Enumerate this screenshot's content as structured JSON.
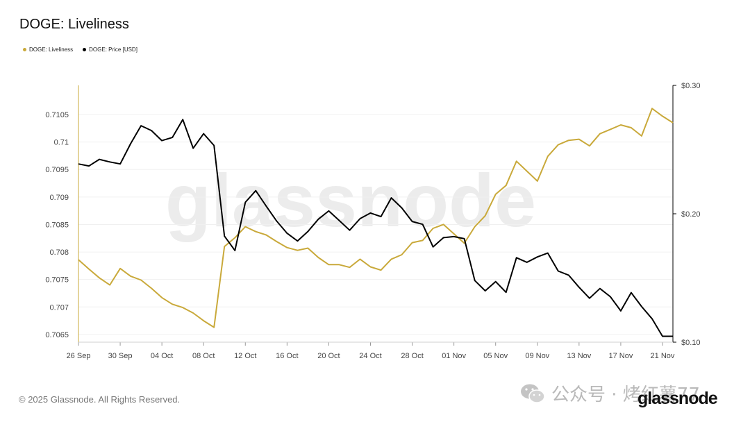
{
  "title": "DOGE: Liveliness",
  "legend": [
    {
      "label": "DOGE: Liveliness",
      "color": "#c9a93a"
    },
    {
      "label": "DOGE: Price [USD]",
      "color": "#000000"
    }
  ],
  "watermark": "glassnode",
  "footer": "© 2025 Glassnode. All Rights Reserved.",
  "brand": "glassnode",
  "wechat_overlay": "公众号 · 烤红薯77",
  "chart_data": {
    "type": "line",
    "x": [
      "26 Sep",
      "27 Sep",
      "28 Sep",
      "29 Sep",
      "30 Sep",
      "01 Oct",
      "02 Oct",
      "03 Oct",
      "04 Oct",
      "05 Oct",
      "06 Oct",
      "07 Oct",
      "08 Oct",
      "09 Oct",
      "10 Oct",
      "11 Oct",
      "12 Oct",
      "13 Oct",
      "14 Oct",
      "15 Oct",
      "16 Oct",
      "17 Oct",
      "18 Oct",
      "19 Oct",
      "20 Oct",
      "21 Oct",
      "22 Oct",
      "23 Oct",
      "24 Oct",
      "25 Oct",
      "26 Oct",
      "27 Oct",
      "28 Oct",
      "29 Oct",
      "30 Oct",
      "31 Oct",
      "01 Nov",
      "02 Nov",
      "03 Nov",
      "04 Nov",
      "05 Nov",
      "06 Nov",
      "07 Nov",
      "08 Nov",
      "09 Nov",
      "10 Nov",
      "11 Nov",
      "12 Nov",
      "13 Nov",
      "14 Nov",
      "15 Nov",
      "16 Nov",
      "17 Nov",
      "18 Nov",
      "19 Nov",
      "20 Nov",
      "21 Nov",
      "22 Nov"
    ],
    "x_ticks": [
      "26 Sep",
      "30 Sep",
      "04 Oct",
      "08 Oct",
      "12 Oct",
      "16 Oct",
      "20 Oct",
      "24 Oct",
      "28 Oct",
      "01 Nov",
      "05 Nov",
      "09 Nov",
      "13 Nov",
      "17 Nov",
      "21 Nov"
    ],
    "series": [
      {
        "name": "DOGE: Liveliness",
        "axis": "left",
        "color": "#c9a93a",
        "values": [
          0.70786,
          0.70769,
          0.70753,
          0.7074,
          0.7077,
          0.70756,
          0.70749,
          0.70734,
          0.70717,
          0.70705,
          0.70699,
          0.70689,
          0.70675,
          0.70663,
          0.7081,
          0.70826,
          0.70846,
          0.70837,
          0.70831,
          0.70819,
          0.70808,
          0.70803,
          0.70807,
          0.7079,
          0.70777,
          0.70777,
          0.70772,
          0.70787,
          0.70773,
          0.70767,
          0.70787,
          0.70795,
          0.70817,
          0.70821,
          0.70843,
          0.7085,
          0.70833,
          0.70816,
          0.70846,
          0.70866,
          0.70905,
          0.70921,
          0.70965,
          0.70947,
          0.70929,
          0.70974,
          0.70995,
          0.71003,
          0.71005,
          0.70993,
          0.71015,
          0.71023,
          0.71031,
          0.71026,
          0.71011,
          0.71061,
          0.71047,
          0.71035
        ]
      },
      {
        "name": "DOGE: Price [USD]",
        "axis": "right",
        "color": "#000000",
        "values": [
          0.2388,
          0.2372,
          0.2424,
          0.2404,
          0.2388,
          0.2546,
          0.2686,
          0.2648,
          0.257,
          0.2594,
          0.2734,
          0.251,
          0.2624,
          0.2532,
          0.1826,
          0.1714,
          0.209,
          0.218,
          0.206,
          0.1944,
          0.1848,
          0.1788,
          0.1862,
          0.1958,
          0.2022,
          0.1948,
          0.1872,
          0.1962,
          0.2006,
          0.1978,
          0.2124,
          0.2046,
          0.194,
          0.1918,
          0.1742,
          0.1814,
          0.1822,
          0.1806,
          0.148,
          0.14,
          0.1472,
          0.1388,
          0.1658,
          0.1622,
          0.1664,
          0.1694,
          0.1554,
          0.1522,
          0.1428,
          0.1342,
          0.1418,
          0.1354,
          0.1244,
          0.1386,
          0.1278,
          0.1182,
          0.1046,
          0.1046
        ]
      }
    ],
    "y_left": {
      "ticks": [
        0.7065,
        0.707,
        0.7075,
        0.708,
        0.7085,
        0.709,
        0.7095,
        0.71,
        0.7105
      ],
      "tick_labels": [
        "0.7065",
        "0.707",
        "0.7075",
        "0.708",
        "0.7085",
        "0.709",
        "0.7095",
        "0.71",
        "0.7105"
      ],
      "range": [
        0.70636,
        0.71103
      ]
    },
    "y_right": {
      "ticks": [
        0.1,
        0.2,
        0.3
      ],
      "tick_labels": [
        "$0.10",
        "$0.20",
        "$0.30"
      ],
      "range": [
        0.1,
        0.3
      ]
    },
    "grid": true,
    "legend_position": "top-left",
    "xlabel": "",
    "ylabel": ""
  }
}
